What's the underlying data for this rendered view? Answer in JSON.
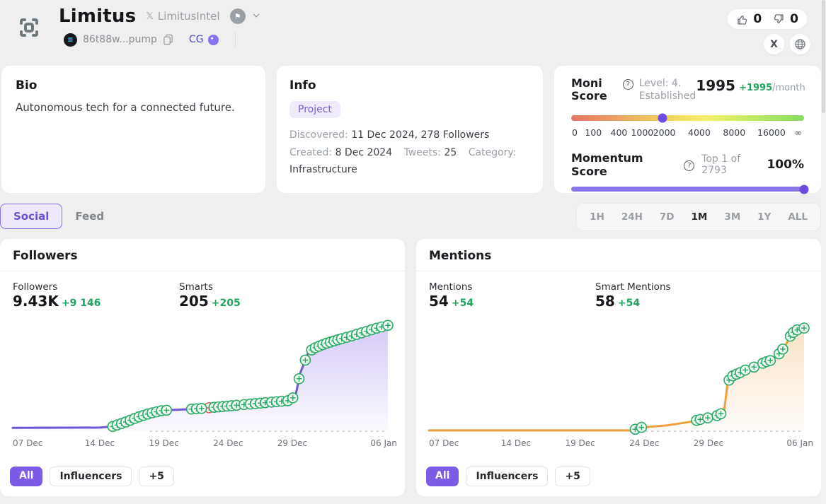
{
  "header": {
    "title": "Limitus",
    "handle": "LimitusIntel",
    "address": "86t88w...pump",
    "cg_label": "CG",
    "likes": "0",
    "dislikes": "0",
    "x_button": "X"
  },
  "bio_card": {
    "title": "Bio",
    "text": "Autonomous tech for a connected future."
  },
  "info_card": {
    "title": "Info",
    "tag": "Project",
    "discovered_label": "Discovered:",
    "discovered_value": "11 Dec 2024, 278 Followers",
    "created_label": "Created:",
    "created_value": "8 Dec 2024",
    "tweets_label": "Tweets:",
    "tweets_value": "25",
    "category_label": "Category:",
    "category_value": "Infrastructure"
  },
  "moni_card": {
    "title": "Moni Score",
    "level_line1": "Level: 4.",
    "level_line2": "Established",
    "score": "1995",
    "score_delta": "+1995",
    "score_period": "/month",
    "slider_pos_percent": 39.2,
    "scale": [
      {
        "label": "0",
        "pos": 1.5
      },
      {
        "label": "100",
        "pos": 9.5
      },
      {
        "label": "400",
        "pos": 20.5
      },
      {
        "label": "1000",
        "pos": 30.5
      },
      {
        "label": "2000",
        "pos": 40
      },
      {
        "label": "4000",
        "pos": 55
      },
      {
        "label": "8000",
        "pos": 70
      },
      {
        "label": "16000",
        "pos": 86
      },
      {
        "label": "∞",
        "pos": 97.5
      }
    ],
    "momentum": {
      "title": "Momentum Score",
      "rank": "Top 1 of 2793",
      "value": "100%",
      "percent": 100
    }
  },
  "tabs": [
    {
      "label": "Social",
      "active": true
    },
    {
      "label": "Feed",
      "active": false
    }
  ],
  "timeranges": [
    {
      "label": "1H"
    },
    {
      "label": "24H"
    },
    {
      "label": "7D"
    },
    {
      "label": "1M",
      "active": true
    },
    {
      "label": "3M"
    },
    {
      "label": "1Y"
    },
    {
      "label": "ALL"
    }
  ],
  "followers_card": {
    "title": "Followers",
    "stats": [
      {
        "label": "Followers",
        "value": "9.43K",
        "delta": "+9 146"
      },
      {
        "label": "Smarts",
        "value": "205",
        "delta": "+205"
      }
    ],
    "chips": [
      {
        "label": "All",
        "active": true
      },
      {
        "label": "Influencers"
      },
      {
        "label": "+5"
      }
    ]
  },
  "mentions_card": {
    "title": "Mentions",
    "stats": [
      {
        "label": "Mentions",
        "value": "54",
        "delta": "+54"
      },
      {
        "label": "Smart Mentions",
        "value": "58",
        "delta": "+54"
      }
    ],
    "chips": [
      {
        "label": "All",
        "active": true
      },
      {
        "label": "Influencers"
      },
      {
        "label": "+5"
      }
    ]
  },
  "colors": {
    "accent": "#7c5ce6",
    "green": "#1fa45b",
    "followers_line": "#6e56d8",
    "followers_fill": "#cfc2f5",
    "mentions_line": "#f0a13e",
    "mentions_fill": "#f7ddbd",
    "marker_green": "#2bab64",
    "marker_fill": "#effaf3",
    "marker_red": "#e06553",
    "moni_dot": "#6b4ce0"
  },
  "chart_data": [
    {
      "id": "followers",
      "type": "area",
      "title": "Followers",
      "x_range_days": [
        0,
        30
      ],
      "ylim": [
        0,
        9700
      ],
      "x_ticks": [
        {
          "label": "07 Dec",
          "day": 0
        },
        {
          "label": "14 Dec",
          "day": 7
        },
        {
          "label": "19 Dec",
          "day": 12
        },
        {
          "label": "24 Dec",
          "day": 17
        },
        {
          "label": "29 Dec",
          "day": 22
        },
        {
          "label": "06 Jan",
          "day": 30
        }
      ],
      "series": [
        {
          "name": "Followers",
          "points": [
            [
              0,
              300
            ],
            [
              7,
              320
            ],
            [
              8,
              420
            ],
            [
              9,
              800
            ],
            [
              10,
              1250
            ],
            [
              11,
              1600
            ],
            [
              12,
              1850
            ],
            [
              13,
              1900
            ],
            [
              14,
              1950
            ],
            [
              15,
              2020
            ],
            [
              16,
              2120
            ],
            [
              17,
              2220
            ],
            [
              18,
              2320
            ],
            [
              19,
              2420
            ],
            [
              20,
              2520
            ],
            [
              21,
              2620
            ],
            [
              22,
              2720
            ],
            [
              22.6,
              3100
            ],
            [
              23,
              5200
            ],
            [
              23.6,
              6900
            ],
            [
              24,
              7350
            ],
            [
              25,
              7800
            ],
            [
              26,
              8150
            ],
            [
              27,
              8450
            ],
            [
              28,
              8800
            ],
            [
              29,
              9150
            ],
            [
              30,
              9430
            ]
          ]
        }
      ],
      "event_markers": {
        "green_days": [
          8,
          8.35,
          8.7,
          9.05,
          9.4,
          9.75,
          10.1,
          10.45,
          10.8,
          11.15,
          11.5,
          11.9,
          12.3,
          14.3,
          14.7,
          15.1,
          16.1,
          16.45,
          16.8,
          17.15,
          17.5,
          17.9,
          18.5,
          19,
          19.4,
          19.8,
          20.2,
          20.7,
          21.1,
          21.5,
          22,
          22.4,
          22.9,
          23.4,
          23.9,
          24.2,
          24.5,
          24.8,
          25.1,
          25.4,
          25.7,
          26,
          26.3,
          26.7,
          27.1,
          27.5,
          27.9,
          28.3,
          28.7,
          29.1,
          29.5,
          30
        ],
        "red_days": [
          15.7
        ]
      },
      "layout": {
        "dash_from_day": 11,
        "grid": false,
        "legend": false
      }
    },
    {
      "id": "mentions",
      "type": "area",
      "title": "Mentions",
      "x_range_days": [
        0,
        30
      ],
      "ylim": [
        0,
        57
      ],
      "x_ticks": [
        {
          "label": "07 Dec",
          "day": 0
        },
        {
          "label": "14 Dec",
          "day": 7
        },
        {
          "label": "19 Dec",
          "day": 12
        },
        {
          "label": "24 Dec",
          "day": 17
        },
        {
          "label": "29 Dec",
          "day": 22
        },
        {
          "label": "06 Jan",
          "day": 30
        }
      ],
      "series": [
        {
          "name": "Mentions",
          "points": [
            [
              0,
              0.4
            ],
            [
              16,
              0.4
            ],
            [
              16.5,
              1
            ],
            [
              17,
              2
            ],
            [
              18,
              2.5
            ],
            [
              19,
              3
            ],
            [
              20,
              4
            ],
            [
              21,
              5
            ],
            [
              21.6,
              6
            ],
            [
              22.3,
              7
            ],
            [
              23,
              8
            ],
            [
              23.3,
              9
            ],
            [
              23.6,
              10
            ],
            [
              23.9,
              26
            ],
            [
              24.3,
              29
            ],
            [
              25,
              31
            ],
            [
              25.6,
              33
            ],
            [
              26.3,
              34
            ],
            [
              26.8,
              36
            ],
            [
              27.3,
              37
            ],
            [
              27.8,
              39
            ],
            [
              28.2,
              42
            ],
            [
              28.6,
              46
            ],
            [
              29,
              51
            ],
            [
              29.4,
              53
            ],
            [
              30,
              54
            ]
          ]
        }
      ],
      "event_markers": {
        "green_days": [
          16.5,
          17,
          21.4,
          21.7,
          22.3,
          23.05,
          23.35,
          24,
          24.3,
          24.6,
          24.9,
          25.3,
          26,
          26.7,
          27,
          27.3,
          28,
          28.3,
          28.9,
          29.15,
          29.45,
          30
        ],
        "red_days": []
      },
      "layout": {
        "dash_from_day": 16,
        "grid": false,
        "legend": false
      }
    }
  ]
}
